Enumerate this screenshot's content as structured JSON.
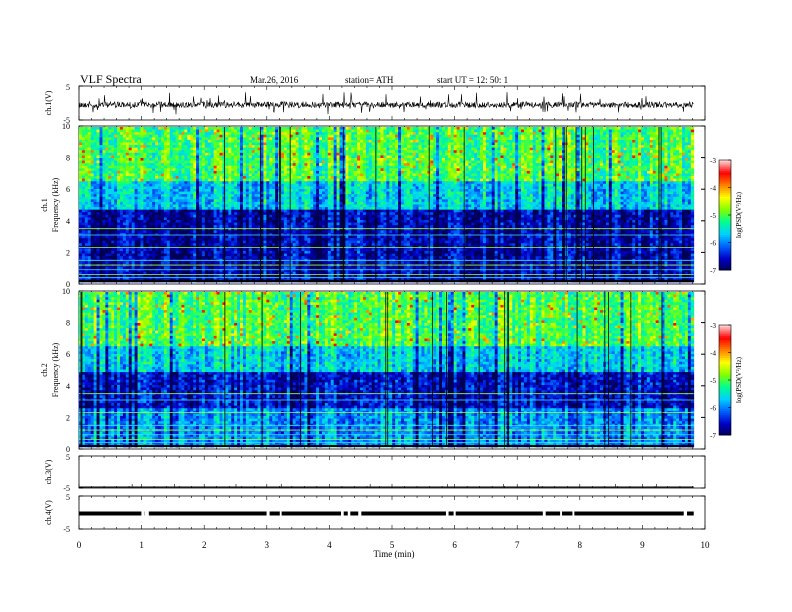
{
  "header": {
    "title": "VLF  Spectra",
    "date": "Mar.26, 2016",
    "station": "station= ATH",
    "start": "start  UT  =   12: 50: 1"
  },
  "chart_data": [
    {
      "type": "line",
      "panel": "ch1-waveform",
      "ylabel": "ch.1(V)",
      "ylim": [
        -5,
        5
      ],
      "yticks": [
        "5",
        "-5"
      ],
      "baseline_v": -0.5,
      "description_series": "dense noisy voltage trace with spikes"
    },
    {
      "type": "heatmap",
      "panel": "ch1-spectrogram",
      "ylabel_channel": "ch.1",
      "ylabel": "Frequency  (kHz)",
      "ylim": [
        0,
        10
      ],
      "yticks": [
        "0",
        "2",
        "4",
        "6",
        "8",
        "10"
      ],
      "colorbar": {
        "label": "log(PSD(V²/Hz)",
        "range": [
          -7,
          -3
        ],
        "ticks": [
          "-3",
          "-4",
          "-5",
          "-6",
          "-7"
        ]
      },
      "bands": [
        {
          "from_khz": 0.0,
          "to_khz": 2.0,
          "log_psd": -6.6
        },
        {
          "from_khz": 2.0,
          "to_khz": 4.6,
          "log_psd": -6.6
        },
        {
          "from_khz": 4.6,
          "to_khz": 6.5,
          "log_psd": -5.6
        },
        {
          "from_khz": 6.5,
          "to_khz": 10.0,
          "log_psd": -5.0
        }
      ]
    },
    {
      "type": "heatmap",
      "panel": "ch2-spectrogram",
      "ylabel_channel": "ch.2",
      "ylabel": "Frequency  (kHz)",
      "ylim": [
        0,
        10
      ],
      "yticks": [
        "0",
        "2",
        "4",
        "6",
        "8",
        "10"
      ],
      "colorbar": {
        "label": "log(PSD(V²/Hz)",
        "range": [
          -7,
          -3
        ],
        "ticks": [
          "-3",
          "-4",
          "-5",
          "-6",
          "-7"
        ]
      },
      "bands": [
        {
          "from_khz": 0.0,
          "to_khz": 2.5,
          "log_psd": -5.9
        },
        {
          "from_khz": 2.5,
          "to_khz": 4.8,
          "log_psd": -6.5
        },
        {
          "from_khz": 4.8,
          "to_khz": 6.5,
          "log_psd": -5.6
        },
        {
          "from_khz": 6.5,
          "to_khz": 10.0,
          "log_psd": -5.0
        }
      ]
    },
    {
      "type": "line",
      "panel": "ch3-waveform",
      "ylabel": "ch.3(V)",
      "ylim": [
        -5,
        5
      ],
      "yticks": [
        "5",
        "-5"
      ],
      "baseline_v": -5,
      "description_series": "flat trace at bottom edge"
    },
    {
      "type": "line",
      "panel": "ch4-waveform",
      "ylabel": "ch.4(V)",
      "ylim": [
        -5,
        5
      ],
      "yticks": [
        "5",
        "-5"
      ],
      "baseline_v": -0.3,
      "description_series": "thick flat trace near zero"
    }
  ],
  "x_axis": {
    "xlabel": "Time  (min)",
    "xlim": [
      0,
      10
    ],
    "ticks": [
      "0",
      "1",
      "2",
      "3",
      "4",
      "5",
      "6",
      "7",
      "8",
      "9",
      "10"
    ],
    "data_end_min": 9.82
  },
  "colors": {
    "colormap": [
      "#000050",
      "#0000c8",
      "#0060ff",
      "#00d0ff",
      "#00ff90",
      "#80ff00",
      "#ffff00",
      "#ff8000",
      "#ff0000",
      "#ffd0d0"
    ],
    "axis": "#000000",
    "trace": "#000000"
  }
}
